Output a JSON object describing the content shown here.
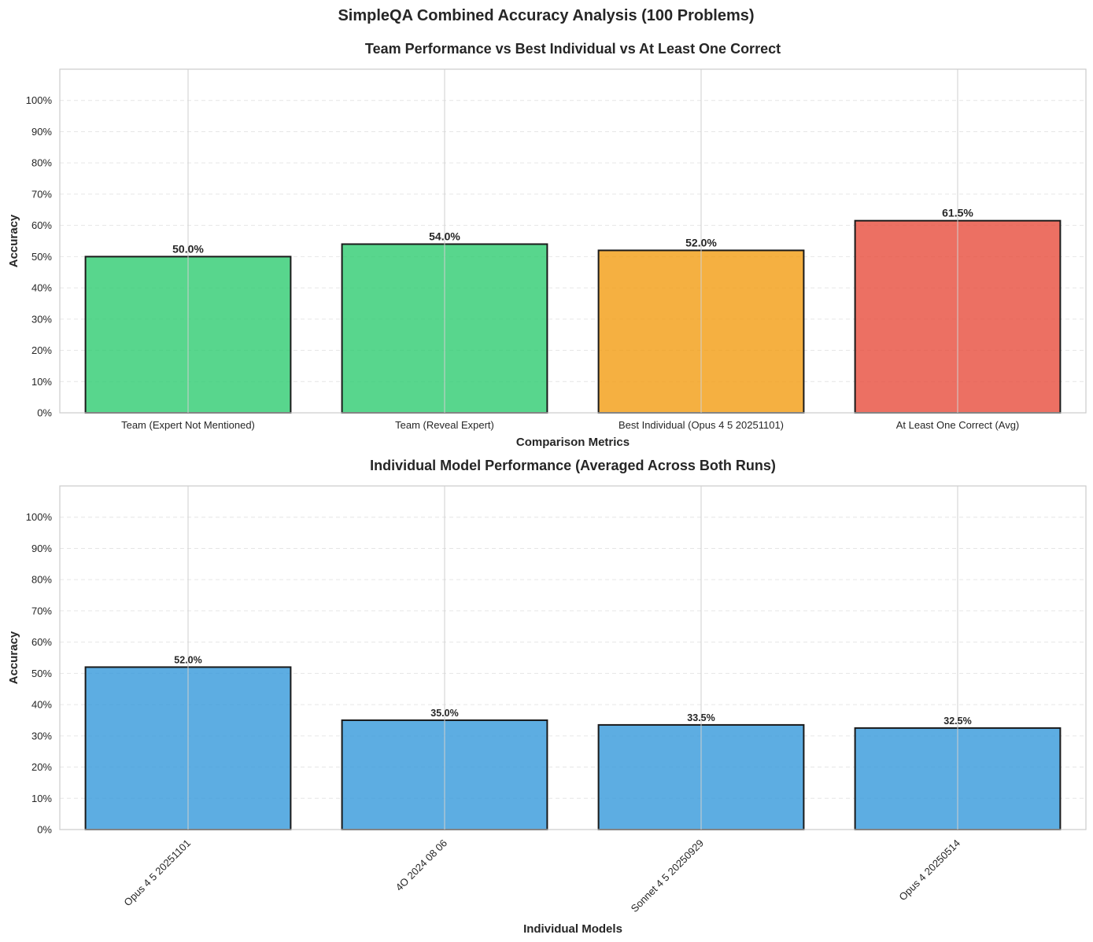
{
  "suptitle": "SimpleQA Combined Accuracy Analysis (100 Problems)",
  "colors": {
    "team": "#2ecc71",
    "best": "#f39c12",
    "at_least_one": "#e74c3c",
    "individual": "#3498db",
    "edge": "#1a1a1a",
    "grid": "#e6e6e6",
    "axes_frame": "#cccccc"
  },
  "chart_data": [
    {
      "type": "bar",
      "title": "Team Performance vs Best Individual vs At Least One Correct",
      "xlabel": "Comparison Metrics",
      "ylabel": "Accuracy",
      "ylim": [
        0,
        1.1
      ],
      "grid": true,
      "categories": [
        "Team (Expert Not Mentioned)",
        "Team (Reveal Expert)",
        "Best Individual (Opus 4 5 20251101)",
        "At Least One Correct (Avg)"
      ],
      "values": [
        0.5,
        0.54,
        0.52,
        0.615
      ],
      "data_labels": [
        "50.0%",
        "54.0%",
        "52.0%",
        "61.5%"
      ],
      "bar_colors": [
        "team",
        "team",
        "best",
        "at_least_one"
      ],
      "y_ticks": [
        "0%",
        "10%",
        "20%",
        "30%",
        "40%",
        "50%",
        "60%",
        "70%",
        "80%",
        "90%",
        "100%"
      ],
      "y_tick_values": [
        0,
        0.1,
        0.2,
        0.3,
        0.4,
        0.5,
        0.6,
        0.7,
        0.8,
        0.9,
        1.0
      ]
    },
    {
      "type": "bar",
      "title": "Individual Model Performance (Averaged Across Both Runs)",
      "xlabel": "Individual Models",
      "ylabel": "Accuracy",
      "ylim": [
        0,
        1.1
      ],
      "grid": true,
      "categories": [
        "Opus 4 5 20251101",
        "4O 2024 08 06",
        "Sonnet 4 5 20250929",
        "Opus 4 20250514"
      ],
      "values": [
        0.52,
        0.35,
        0.335,
        0.325
      ],
      "data_labels": [
        "52.0%",
        "35.0%",
        "33.5%",
        "32.5%"
      ],
      "bar_colors": [
        "individual",
        "individual",
        "individual",
        "individual"
      ],
      "y_ticks": [
        "0%",
        "10%",
        "20%",
        "30%",
        "40%",
        "50%",
        "60%",
        "70%",
        "80%",
        "90%",
        "100%"
      ],
      "y_tick_values": [
        0,
        0.1,
        0.2,
        0.3,
        0.4,
        0.5,
        0.6,
        0.7,
        0.8,
        0.9,
        1.0
      ]
    }
  ]
}
